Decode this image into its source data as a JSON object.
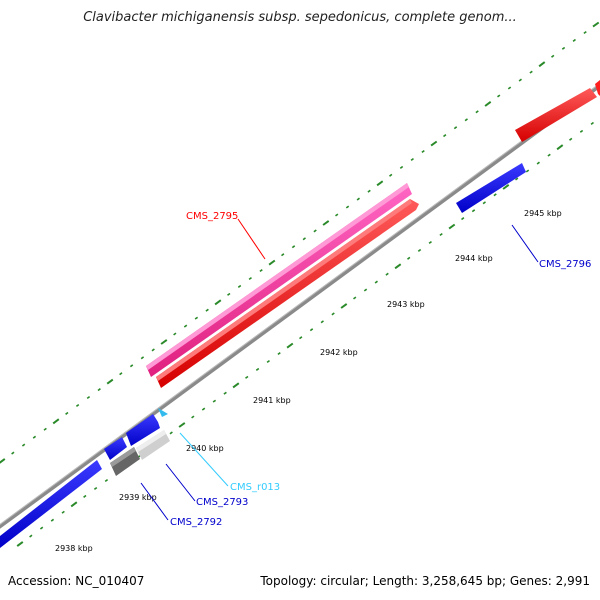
{
  "title": "Clavibacter michiganensis subsp. sepedonicus, complete genom...",
  "footer": {
    "accession": "Accession: NC_010407",
    "summary": "Topology: circular; Length: 3,258,645 bp; Genes: 2,991"
  },
  "kbp_labels": [
    "2938 kbp",
    "2939 kbp",
    "2940 kbp",
    "2941 kbp",
    "2942 kbp",
    "2943 kbp",
    "2944 kbp",
    "2945 kbp"
  ],
  "genes": [
    {
      "name": "CMS_2795",
      "color": "#ff0000"
    },
    {
      "name": "CMS_2796",
      "color": "#0000cc"
    },
    {
      "name": "CMS_r013",
      "color": "#33ccff"
    },
    {
      "name": "CMS_2793",
      "color": "#0000cc"
    },
    {
      "name": "CMS_2792",
      "color": "#0000cc"
    }
  ],
  "colors": {
    "backbone": "#888888",
    "ticks": "#2a8a2a",
    "forward_gene": "#ff0000",
    "cds_match": "#ff3399",
    "reverse_gene": "#0000ee",
    "rna_gene": "#33ccff",
    "pseudo_gene_dark": "#666666",
    "pseudo_gene_light": "#cccccc"
  }
}
